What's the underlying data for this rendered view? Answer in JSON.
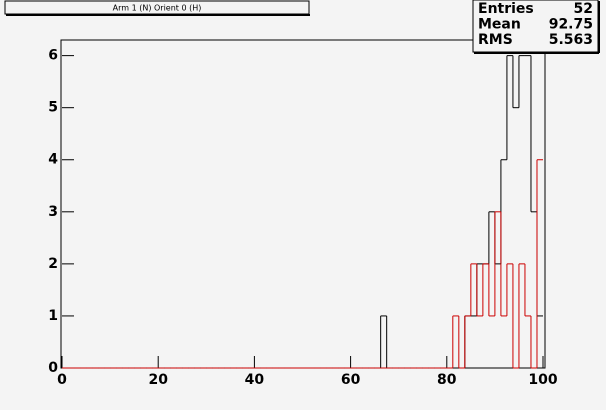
{
  "chart_data": {
    "type": "histogram",
    "title": "Arm 1 (N) Orient 0 (H)",
    "bins": [
      0,
      1.25,
      2.5,
      3.75,
      5,
      6.25,
      7.5,
      8.75,
      10,
      11.25,
      12.5,
      13.75,
      15,
      16.25,
      17.5,
      18.75,
      20,
      21.25,
      22.5,
      23.75,
      25,
      26.25,
      27.5,
      28.75,
      30,
      31.25,
      32.5,
      33.75,
      35,
      36.25,
      37.5,
      38.75,
      40,
      41.25,
      42.5,
      43.75,
      45,
      46.25,
      47.5,
      48.75,
      50,
      51.25,
      52.5,
      53.75,
      55,
      56.25,
      57.5,
      58.75,
      60,
      61.25,
      62.5,
      63.75,
      65,
      66.25,
      67.5,
      68.75,
      70,
      71.25,
      72.5,
      73.75,
      75,
      76.25,
      77.5,
      78.75,
      80,
      81.25,
      82.5,
      83.75,
      85,
      86.25,
      87.5,
      88.75,
      90,
      91.25,
      92.5,
      93.75,
      95,
      96.25,
      97.5,
      98.75,
      100
    ],
    "series": [
      {
        "color": "#000000",
        "values": [
          0,
          0,
          0,
          0,
          0,
          0,
          0,
          0,
          0,
          0,
          0,
          0,
          0,
          0,
          0,
          0,
          0,
          0,
          0,
          0,
          0,
          0,
          0,
          0,
          0,
          0,
          0,
          0,
          0,
          0,
          0,
          0,
          0,
          0,
          0,
          0,
          0,
          0,
          0,
          0,
          0,
          0,
          0,
          0,
          0,
          0,
          0,
          0,
          0,
          0,
          0,
          0,
          0,
          1,
          0,
          0,
          0,
          0,
          0,
          0,
          0,
          0,
          0,
          0,
          0,
          0,
          0,
          1,
          1,
          2,
          2,
          3,
          2,
          4,
          6,
          5,
          6,
          6,
          3,
          1
        ]
      },
      {
        "color": "#cc0000",
        "values": [
          0,
          0,
          0,
          0,
          0,
          0,
          0,
          0,
          0,
          0,
          0,
          0,
          0,
          0,
          0,
          0,
          0,
          0,
          0,
          0,
          0,
          0,
          0,
          0,
          0,
          0,
          0,
          0,
          0,
          0,
          0,
          0,
          0,
          0,
          0,
          0,
          0,
          0,
          0,
          0,
          0,
          0,
          0,
          0,
          0,
          0,
          0,
          0,
          0,
          0,
          0,
          0,
          0,
          0,
          0,
          0,
          0,
          0,
          0,
          0,
          0,
          0,
          0,
          0,
          0,
          1,
          0,
          1,
          2,
          1,
          2,
          1,
          3,
          1,
          2,
          0,
          2,
          1,
          0,
          4
        ]
      }
    ],
    "xlim": [
      0,
      100
    ],
    "xticks": [
      0,
      20,
      40,
      60,
      80,
      100
    ],
    "ylim": [
      0,
      6.3
    ],
    "yticks": [
      0,
      1,
      2,
      3,
      4,
      5,
      6
    ],
    "stats": [
      {
        "label": "Entries",
        "value": 52
      },
      {
        "label": "Mean",
        "value": 92.75
      },
      {
        "label": "RMS",
        "value": 5.563
      }
    ]
  }
}
